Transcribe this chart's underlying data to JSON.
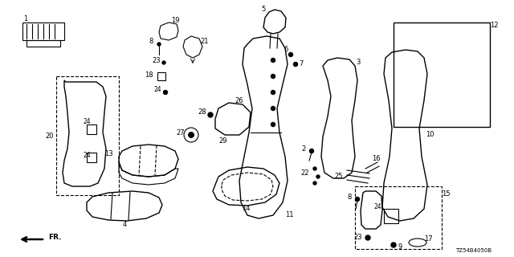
{
  "diagram_code": "TZ54B4050B",
  "background_color": "#ffffff",
  "line_color": "#000000",
  "fig_width": 6.4,
  "fig_height": 3.2,
  "dpi": 100
}
